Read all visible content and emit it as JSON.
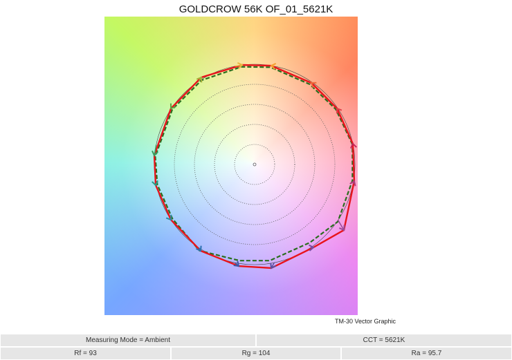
{
  "chart_data": {
    "type": "vector-graphic",
    "title": "GOLDCROW 56K OF_01_5621K",
    "caption": "TM-30 Vector Graphic",
    "reference_circle_radius": 1,
    "grid_circles": [
      0.2,
      0.4,
      0.6,
      0.8
    ],
    "grid": true,
    "series": [
      {
        "role": "test",
        "color": "#e8141c",
        "points": [
          [
            0.979,
            0.207
          ],
          [
            0.821,
            0.559
          ],
          [
            0.566,
            0.814
          ],
          [
            0.166,
            0.986
          ],
          [
            -0.124,
            0.993
          ],
          [
            -0.531,
            0.869
          ],
          [
            -0.834,
            0.559
          ],
          [
            -1.0,
            0.09
          ],
          [
            -0.986,
            -0.207
          ],
          [
            -0.834,
            -0.552
          ],
          [
            -0.538,
            -0.862
          ],
          [
            -0.159,
            -1.014
          ],
          [
            0.166,
            -1.034
          ],
          [
            0.586,
            -0.828
          ],
          [
            0.89,
            -0.655
          ],
          [
            0.993,
            -0.166
          ]
        ]
      },
      {
        "role": "dashed",
        "color": "#2a6e1e",
        "points": [
          [
            0.975,
            0.2
          ],
          [
            0.81,
            0.55
          ],
          [
            0.55,
            0.8
          ],
          [
            0.16,
            0.97
          ],
          [
            -0.13,
            0.975
          ],
          [
            -0.53,
            0.84
          ],
          [
            -0.82,
            0.55
          ],
          [
            -0.99,
            0.08
          ],
          [
            -0.97,
            -0.2
          ],
          [
            -0.82,
            -0.54
          ],
          [
            -0.55,
            -0.86
          ],
          [
            -0.15,
            -0.96
          ],
          [
            0.15,
            -0.96
          ],
          [
            0.55,
            -0.78
          ],
          [
            0.83,
            -0.57
          ],
          [
            0.975,
            -0.16
          ]
        ]
      }
    ],
    "bin_arrow_colors": [
      "#c4285a",
      "#e0404a",
      "#f06a3a",
      "#f59e2e",
      "#e8b840",
      "#a8b23a",
      "#5ea040",
      "#3a9a5c",
      "#2a9a88",
      "#2a8aa0",
      "#2a70b0",
      "#3a58a8",
      "#5a50a0",
      "#7a4aa0",
      "#9a4a98",
      "#b03a78"
    ]
  },
  "table": {
    "row1": [
      "Measuring Mode = Ambient",
      "CCT = 5621K"
    ],
    "row2": [
      "Rf = 93",
      "Rg = 104",
      "Ra = 95.7"
    ]
  }
}
